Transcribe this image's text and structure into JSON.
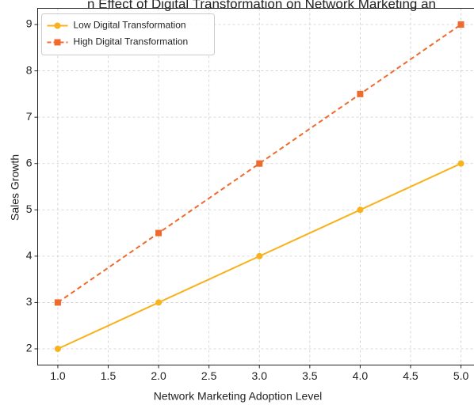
{
  "chart_data": {
    "type": "line",
    "title": "n Effect of Digital Transformation on Network Marketing an",
    "x_label": "Network Marketing Adoption Level",
    "y_label": "Sales Growth",
    "x": [
      1,
      2,
      3,
      4,
      5
    ],
    "series": [
      {
        "name": "Low Digital Transformation",
        "color": "#f7b21c",
        "marker": "circle",
        "linestyle": "solid",
        "values": [
          2,
          3,
          4,
          5,
          6
        ]
      },
      {
        "name": "High Digital Transformation",
        "color": "#ef6a2c",
        "marker": "square",
        "linestyle": "dashed",
        "values": [
          3,
          4.5,
          6,
          7.5,
          9
        ]
      }
    ],
    "xlim": [
      0.8,
      5.2
    ],
    "xticks": [
      {
        "value": 1,
        "label": "1.0"
      },
      1.5,
      {
        "value": 2,
        "label": "2.0"
      },
      2.5,
      {
        "value": 3,
        "label": "3.0"
      },
      3.5,
      {
        "value": 4,
        "label": "4.0"
      },
      4.5,
      {
        "value": 5,
        "label": "5.0"
      }
    ],
    "ylim": [
      1.65,
      9.35
    ],
    "yticks": [
      2,
      3,
      4,
      5,
      6,
      7,
      8,
      9
    ],
    "grid": true,
    "legend": "upper-left"
  }
}
